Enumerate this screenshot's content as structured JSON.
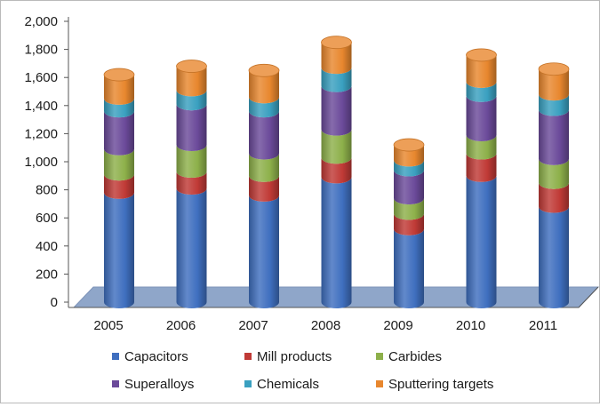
{
  "chart_data": {
    "type": "bar",
    "stacked": true,
    "style": "3d-cylinder",
    "categories": [
      "2005",
      "2006",
      "2007",
      "2008",
      "2009",
      "2010",
      "2011"
    ],
    "ylim": [
      0,
      2000
    ],
    "yticks": [
      "0",
      "200",
      "400",
      "600",
      "800",
      "1,000",
      "1,200",
      "1,400",
      "1,600",
      "1,800",
      "2,000"
    ],
    "ytick_values": [
      0,
      200,
      400,
      600,
      800,
      1000,
      1200,
      1400,
      1600,
      1800,
      2000
    ],
    "grid": false,
    "legend_position": "bottom",
    "series": [
      {
        "name": "Capacitors",
        "color": "#3f6fbf",
        "values": [
          780,
          810,
          760,
          890,
          520,
          900,
          680
        ]
      },
      {
        "name": "Mill products",
        "color": "#c03a36",
        "values": [
          130,
          120,
          140,
          140,
          110,
          160,
          170
        ]
      },
      {
        "name": "Carbides",
        "color": "#8db04a",
        "values": [
          180,
          190,
          160,
          200,
          110,
          130,
          170
        ]
      },
      {
        "name": "Superalloys",
        "color": "#6b4a9a",
        "values": [
          270,
          290,
          300,
          310,
          200,
          280,
          350
        ]
      },
      {
        "name": "Chemicals",
        "color": "#3aa0c0",
        "values": [
          90,
          100,
          100,
          130,
          70,
          100,
          110
        ]
      },
      {
        "name": "Sputtering targets",
        "color": "#e8872e",
        "values": [
          170,
          170,
          190,
          180,
          110,
          190,
          180
        ]
      }
    ]
  }
}
